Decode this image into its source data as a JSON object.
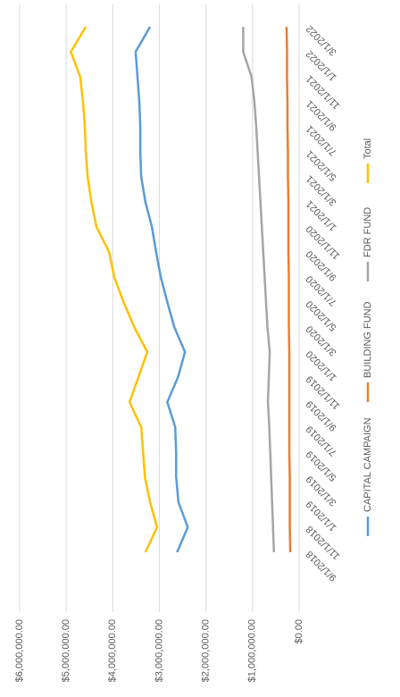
{
  "chart_data": {
    "type": "line",
    "categories": [
      "9/1/2018",
      "11/1/2018",
      "1/1/2019",
      "3/1/2019",
      "5/1/2019",
      "7/1/2019",
      "9/1/2019",
      "11/1/2019",
      "1/1/2020",
      "3/1/2020",
      "5/1/2020",
      "7/1/2020",
      "9/1/2020",
      "11/1/2020",
      "1/1/2021",
      "3/1/2021",
      "5/1/2021",
      "7/1/2021",
      "9/1/2021",
      "11/1/2021",
      "1/1/2022",
      "3/1/2022"
    ],
    "series": [
      {
        "name": "CAPITAL CAMPAIGN",
        "color": "#5b9bd5",
        "values": [
          2620000,
          2390000,
          2590000,
          2640000,
          2640000,
          2660000,
          2830000,
          2600000,
          2450000,
          2680000,
          2830000,
          2970000,
          3070000,
          3160000,
          3300000,
          3390000,
          3410000,
          3410000,
          3430000,
          3470000,
          3510000,
          3200000
        ]
      },
      {
        "name": "BUILDING FUND",
        "color": "#ed7d31",
        "values": [
          190000,
          200000,
          200000,
          200000,
          210000,
          210000,
          210000,
          210000,
          210000,
          220000,
          220000,
          220000,
          230000,
          230000,
          230000,
          240000,
          240000,
          250000,
          250000,
          260000,
          260000,
          270000
        ]
      },
      {
        "name": "FDR FUND",
        "color": "#a5a5a5",
        "values": [
          540000,
          560000,
          580000,
          600000,
          620000,
          640000,
          670000,
          650000,
          630000,
          680000,
          710000,
          740000,
          770000,
          800000,
          830000,
          860000,
          890000,
          920000,
          960000,
          1020000,
          1200000,
          1200000
        ]
      },
      {
        "name": "Total",
        "color": "#ffc000",
        "values": [
          3300000,
          3050000,
          3200000,
          3310000,
          3350000,
          3390000,
          3640000,
          3450000,
          3260000,
          3540000,
          3770000,
          3970000,
          4080000,
          4350000,
          4460000,
          4540000,
          4580000,
          4600000,
          4640000,
          4700000,
          4900000,
          4580000
        ]
      }
    ],
    "ylim": [
      0,
      6000000
    ],
    "yticks": [
      {
        "value": 0,
        "label": "$0.00"
      },
      {
        "value": 1000000,
        "label": "$1,000,000.00"
      },
      {
        "value": 2000000,
        "label": "$2,000,000.00"
      },
      {
        "value": 3000000,
        "label": "$3,000,000.00"
      },
      {
        "value": 4000000,
        "label": "$4,000,000.00"
      },
      {
        "value": 5000000,
        "label": "$5,000,000.00"
      },
      {
        "value": 6000000,
        "label": "$6,000,000.00"
      }
    ],
    "grid": true,
    "legend": "bottom"
  }
}
